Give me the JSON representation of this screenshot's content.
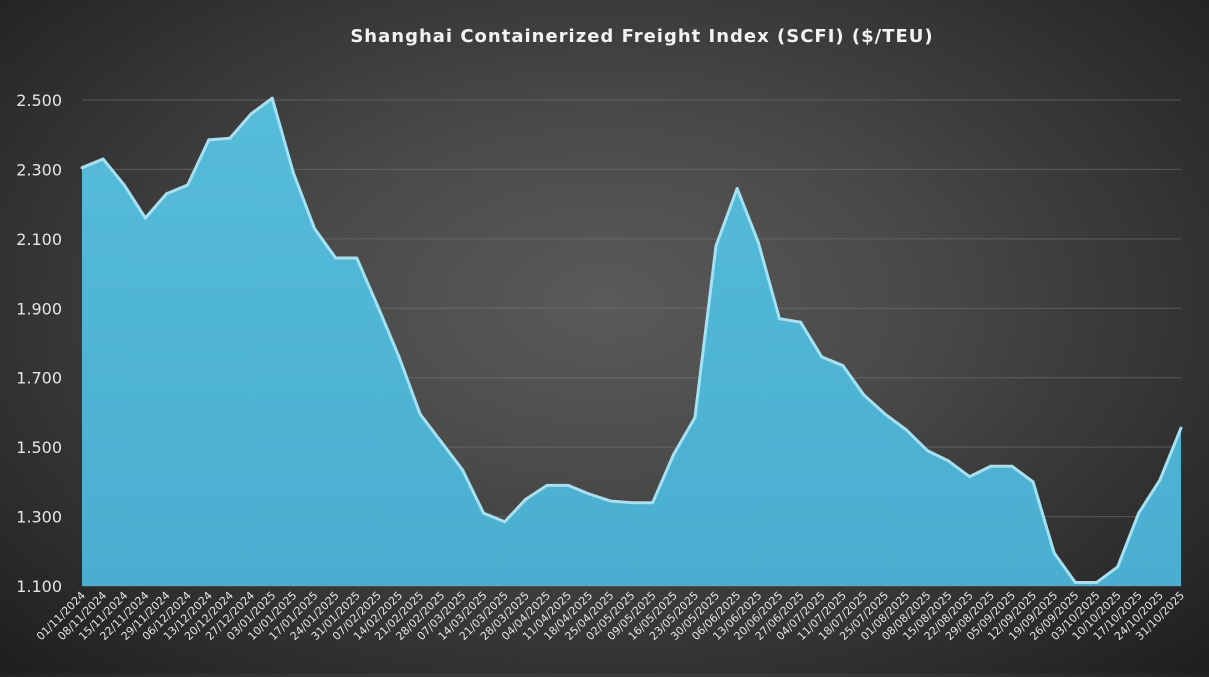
{
  "chart_data": {
    "type": "area",
    "title": "Shanghai Containerized Freight Index (SCFI) ($/TEU)",
    "xlabel": "",
    "ylabel": "",
    "ylim": [
      1100,
      2500
    ],
    "yticks": [
      1100,
      1300,
      1500,
      1700,
      1900,
      2100,
      2300,
      2500
    ],
    "ytick_labels": [
      "1.100",
      "1.300",
      "1.500",
      "1.700",
      "1.900",
      "2.100",
      "2.300",
      "2.500"
    ],
    "grid": true,
    "legend": "none",
    "colors": {
      "area_fill": "#4fb5d3",
      "area_edge": "#9fe3f5",
      "gridline": "#7a7a7a",
      "text": "#e6e6e6"
    },
    "x": [
      "01/11/2024",
      "08/11/2024",
      "15/11/2024",
      "22/11/2024",
      "29/11/2024",
      "06/12/2024",
      "13/12/2024",
      "20/12/2024",
      "27/12/2024",
      "03/01/2025",
      "10/01/2025",
      "17/01/2025",
      "24/01/2025",
      "31/01/2025",
      "07/02/2025",
      "14/02/2025",
      "21/02/2025",
      "28/02/2025",
      "07/03/2025",
      "14/03/2025",
      "21/03/2025",
      "28/03/2025",
      "04/04/2025",
      "11/04/2025",
      "18/04/2025",
      "25/04/2025",
      "02/05/2025",
      "09/05/2025",
      "16/05/2025",
      "23/05/2025",
      "30/05/2025",
      "06/06/2025",
      "13/06/2025",
      "20/06/2025",
      "27/06/2025",
      "04/07/2025",
      "11/07/2025",
      "18/07/2025",
      "25/07/2025",
      "01/08/2025",
      "08/08/2025",
      "15/08/2025",
      "22/08/2025",
      "29/08/2025",
      "05/09/2025",
      "12/09/2025",
      "19/09/2025",
      "26/09/2025",
      "03/10/2025",
      "10/10/2025",
      "17/10/2025",
      "24/10/2025",
      "31/10/2025"
    ],
    "series": [
      {
        "values": [
          2305,
          2330,
          2255,
          2160,
          2230,
          2255,
          2385,
          2390,
          2460,
          2505,
          2290,
          2130,
          2045,
          2045,
          1905,
          1760,
          1595,
          1515,
          1435,
          1310,
          1285,
          1350,
          1390,
          1390,
          1365,
          1345,
          1340,
          1340,
          1480,
          1585,
          2080,
          2245,
          2090,
          1870,
          1860,
          1760,
          1735,
          1650,
          1595,
          1550,
          1490,
          1460,
          1415,
          1445,
          1445,
          1400,
          1195,
          1110,
          1110,
          1155,
          1310,
          1405,
          1555
        ]
      }
    ]
  }
}
